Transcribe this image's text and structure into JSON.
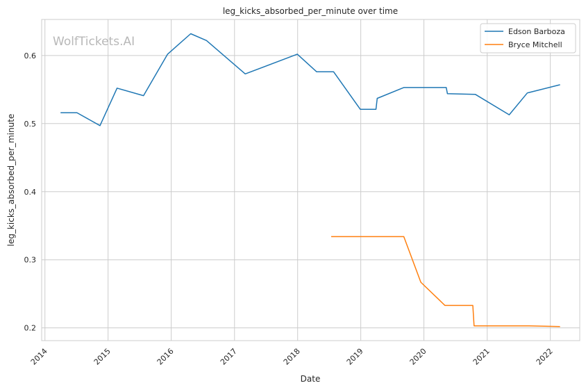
{
  "chart_data": {
    "type": "line",
    "title": "leg_kicks_absorbed_per_minute over time",
    "xlabel": "Date",
    "ylabel": "leg_kicks_absorbed_per_minute",
    "watermark": "WolfTickets.AI",
    "xlim": [
      "2013-12-13",
      "2022-06-20"
    ],
    "ylim": [
      0.1813,
      0.6529
    ],
    "x_ticks": [
      "2014",
      "2015",
      "2016",
      "2017",
      "2018",
      "2019",
      "2020",
      "2021",
      "2022"
    ],
    "y_ticks": [
      0.2,
      0.3,
      0.4,
      0.5,
      0.6
    ],
    "grid": true,
    "legend_position": "top-right",
    "series": [
      {
        "name": "Edson Barboza",
        "color": "#1f77b4",
        "points": [
          [
            "2014-04-01",
            0.516
          ],
          [
            "2014-07-05",
            0.516
          ],
          [
            "2014-11-15",
            0.497
          ],
          [
            "2015-02-22",
            0.552
          ],
          [
            "2015-07-25",
            0.541
          ],
          [
            "2015-12-11",
            0.602
          ],
          [
            "2016-04-23",
            0.632
          ],
          [
            "2016-07-23",
            0.622
          ],
          [
            "2017-03-04",
            0.573
          ],
          [
            "2017-12-30",
            0.602
          ],
          [
            "2018-04-21",
            0.576
          ],
          [
            "2018-07-28",
            0.576
          ],
          [
            "2018-12-29",
            0.521
          ],
          [
            "2019-03-30",
            0.521
          ],
          [
            "2019-04-06",
            0.537
          ],
          [
            "2019-09-07",
            0.553
          ],
          [
            "2020-05-09",
            0.553
          ],
          [
            "2020-05-16",
            0.544
          ],
          [
            "2020-10-24",
            0.543
          ],
          [
            "2021-05-08",
            0.513
          ],
          [
            "2021-08-21",
            0.545
          ],
          [
            "2022-02-26",
            0.557
          ]
        ]
      },
      {
        "name": "Bryce Mitchell",
        "color": "#ff7f0e",
        "points": [
          [
            "2018-07-14",
            0.334
          ],
          [
            "2019-09-07",
            0.334
          ],
          [
            "2019-12-14",
            0.267
          ],
          [
            "2020-05-02",
            0.233
          ],
          [
            "2020-10-10",
            0.233
          ],
          [
            "2020-10-17",
            0.203
          ],
          [
            "2021-09-01",
            0.203
          ],
          [
            "2022-02-26",
            0.202
          ]
        ]
      }
    ]
  }
}
